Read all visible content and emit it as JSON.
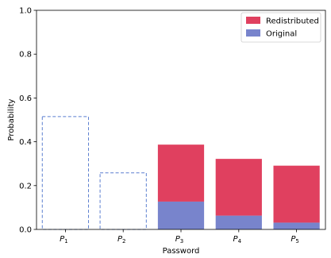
{
  "chart_data": {
    "type": "bar",
    "title": "",
    "xlabel": "Password",
    "ylabel": "Probability",
    "ylim": [
      0,
      1.0
    ],
    "yticks": [
      "0.0",
      "0.2",
      "0.4",
      "0.6",
      "0.8",
      "1.0"
    ],
    "categories": [
      {
        "main": "P",
        "sub": "1"
      },
      {
        "main": "P",
        "sub": "2"
      },
      {
        "main": "P",
        "sub": "3"
      },
      {
        "main": "P",
        "sub": "4"
      },
      {
        "main": "P",
        "sub": "5"
      }
    ],
    "dashed_outline": {
      "values": [
        0.515,
        0.258,
        null,
        null,
        null
      ],
      "color": "#5b7fd0"
    },
    "series": [
      {
        "name": "Original",
        "values": [
          0,
          0,
          0.127,
          0.063,
          0.031
        ],
        "color": "#7884cc"
      },
      {
        "name": "Redistributed",
        "values": [
          0,
          0,
          0.26,
          0.259,
          0.26
        ],
        "color": "#e0405f"
      }
    ],
    "stacked": true,
    "legend": {
      "position": "top-right",
      "order": [
        "Redistributed",
        "Original"
      ]
    },
    "grid": false
  }
}
